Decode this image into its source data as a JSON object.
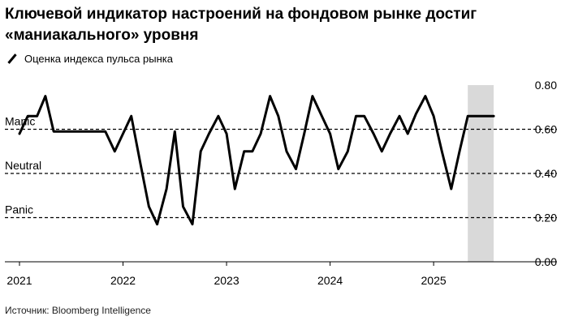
{
  "title": "Ключевой индикатор настроений на фондовом рынке достиг «маниакального» уровня",
  "legend": {
    "series_label": "Оценка индекса пульса рынка"
  },
  "source": "Источник: Bloomberg Intelligence",
  "chart_data": {
    "type": "line",
    "title": "Ключевой индикатор настроений на фондовом рынке достиг «маниакального» уровня",
    "xlabel": "",
    "ylabel": "",
    "xlim": [
      2021.0,
      2025.65
    ],
    "ylim": [
      0.0,
      0.8
    ],
    "y_ticks": [
      0.0,
      0.2,
      0.4,
      0.6,
      0.8
    ],
    "y_tick_labels": [
      "0.00",
      "0.20",
      "0.40",
      "0.60",
      "0.80"
    ],
    "x_ticks": [
      2021,
      2022,
      2023,
      2024,
      2025
    ],
    "x_tick_labels": [
      "2021",
      "2022",
      "2023",
      "2024",
      "2025"
    ],
    "grid": false,
    "legend_position": "top-left",
    "reference_lines": [
      {
        "label": "Manic",
        "y": 0.6
      },
      {
        "label": "Neutral",
        "y": 0.4
      },
      {
        "label": "Panic",
        "y": 0.2
      }
    ],
    "highlight": {
      "x_start": 2025.33,
      "x_end": 2025.58,
      "color": "#d9d9d9"
    },
    "series": [
      {
        "name": "Оценка индекса пульса рынка",
        "color": "#000000",
        "x": [
          2021.0,
          2021.08,
          2021.17,
          2021.25,
          2021.33,
          2021.42,
          2021.5,
          2021.58,
          2021.67,
          2021.75,
          2021.83,
          2021.92,
          2022.0,
          2022.08,
          2022.17,
          2022.25,
          2022.33,
          2022.42,
          2022.5,
          2022.58,
          2022.67,
          2022.75,
          2022.83,
          2022.92,
          2023.0,
          2023.08,
          2023.17,
          2023.25,
          2023.33,
          2023.42,
          2023.5,
          2023.58,
          2023.67,
          2023.75,
          2023.83,
          2023.92,
          2024.0,
          2024.08,
          2024.17,
          2024.25,
          2024.33,
          2024.42,
          2024.5,
          2024.58,
          2024.67,
          2024.75,
          2024.83,
          2024.92,
          2025.0,
          2025.08,
          2025.17,
          2025.25,
          2025.33,
          2025.42,
          2025.5,
          2025.58
        ],
        "values": [
          0.58,
          0.66,
          0.66,
          0.75,
          0.59,
          0.59,
          0.59,
          0.59,
          0.59,
          0.59,
          0.59,
          0.5,
          0.58,
          0.66,
          0.44,
          0.25,
          0.17,
          0.33,
          0.59,
          0.25,
          0.17,
          0.5,
          0.58,
          0.66,
          0.58,
          0.33,
          0.5,
          0.5,
          0.58,
          0.75,
          0.66,
          0.5,
          0.42,
          0.58,
          0.75,
          0.66,
          0.58,
          0.42,
          0.5,
          0.66,
          0.66,
          0.58,
          0.5,
          0.58,
          0.66,
          0.58,
          0.67,
          0.75,
          0.66,
          0.5,
          0.33,
          0.5,
          0.66,
          0.66,
          0.66,
          0.66
        ]
      }
    ]
  }
}
